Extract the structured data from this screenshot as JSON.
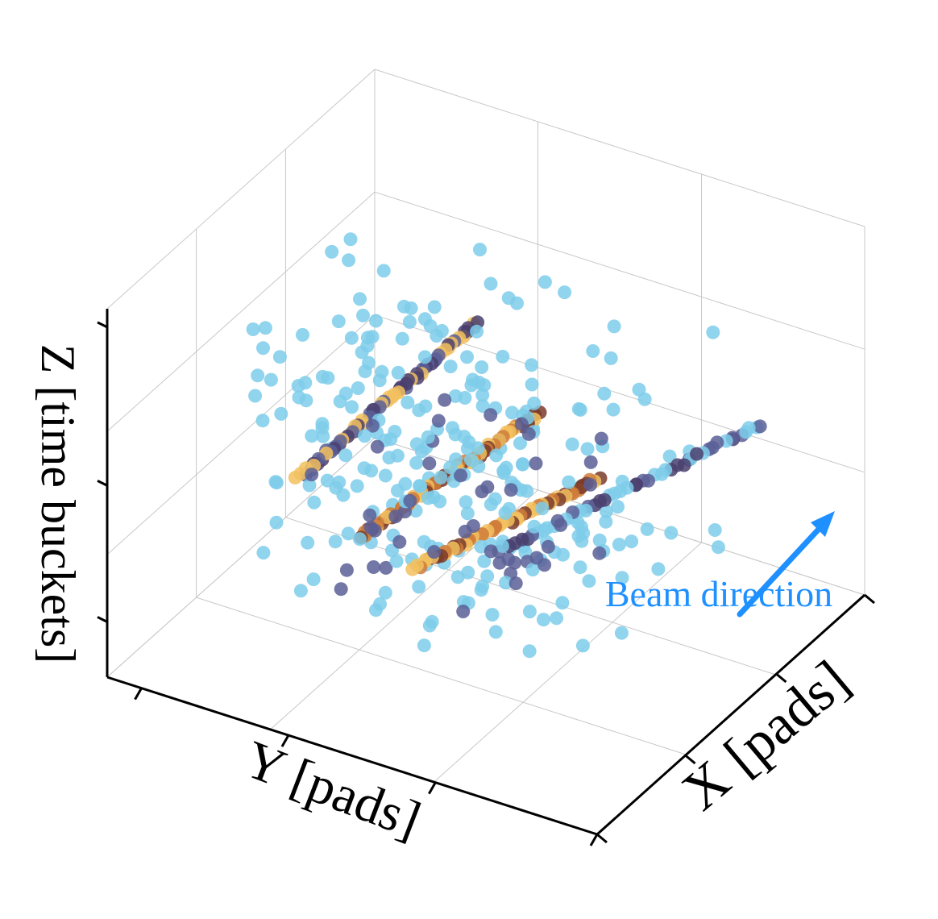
{
  "chart_data": {
    "type": "scatter",
    "projection": "3d",
    "title": "",
    "axes": {
      "x": {
        "label": "X [pads]"
      },
      "y": {
        "label": "Y [pads]"
      },
      "z": {
        "label": "Z [time buckets]"
      }
    },
    "grid": true,
    "legend": "none",
    "annotation": {
      "text": "Beam direction",
      "color": "#1e90ff",
      "arrow": true
    },
    "colors": {
      "noise": "#7ecdea",
      "track_dark": "#4a3f6e",
      "track_blue": "#5a5f96",
      "track_yellow": "#f2c15f",
      "track_orange": "#cf7d3a",
      "track_brown": "#7a3b2a"
    },
    "series": [
      {
        "kind": "track",
        "start": [
          0.35,
          0.2,
          0.4
        ],
        "end": [
          0.38,
          0.55,
          0.95
        ],
        "count": 70,
        "colors": [
          "track_dark",
          "track_yellow",
          "track_blue"
        ]
      },
      {
        "kind": "track",
        "start": [
          0.4,
          0.3,
          0.25
        ],
        "end": [
          0.42,
          0.65,
          0.72
        ],
        "count": 62,
        "colors": [
          "track_yellow",
          "track_orange",
          "track_brown"
        ]
      },
      {
        "kind": "track",
        "start": [
          0.5,
          0.35,
          0.12
        ],
        "end": [
          0.55,
          0.7,
          0.48
        ],
        "count": 55,
        "colors": [
          "track_brown",
          "track_orange",
          "track_yellow"
        ]
      },
      {
        "kind": "track",
        "start": [
          0.55,
          0.5,
          0.2
        ],
        "end": [
          0.8,
          0.9,
          0.55
        ],
        "count": 50,
        "colors": [
          "track_dark",
          "track_blue",
          "noise"
        ]
      },
      {
        "kind": "cloud",
        "center": [
          0.45,
          0.5,
          0.55
        ],
        "spread": [
          0.3,
          0.35,
          0.35
        ],
        "count": 220,
        "colors": [
          "noise"
        ]
      },
      {
        "kind": "cloud",
        "center": [
          0.6,
          0.4,
          0.2
        ],
        "spread": [
          0.25,
          0.25,
          0.18
        ],
        "count": 80,
        "colors": [
          "noise",
          "track_blue"
        ]
      }
    ]
  }
}
